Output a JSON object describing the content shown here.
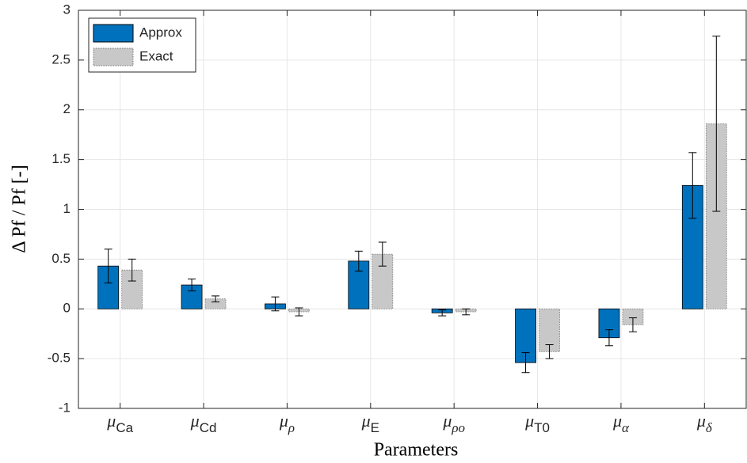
{
  "chart_data": {
    "type": "bar",
    "xlabel": "Parameters",
    "ylabel": "Δ Pf / Pf [-]",
    "categories": [
      "μCa",
      "μCd",
      "μρ",
      "μE",
      "μρo",
      "μT0",
      "μα",
      "μδ"
    ],
    "series": [
      {
        "name": "Approx",
        "color": "#0072bd",
        "values": [
          0.43,
          0.24,
          0.05,
          0.48,
          -0.04,
          -0.54,
          -0.29,
          1.24
        ],
        "errors": [
          0.17,
          0.06,
          0.07,
          0.1,
          0.03,
          0.1,
          0.08,
          0.33
        ]
      },
      {
        "name": "Exact",
        "color": "#c8c8c8",
        "values": [
          0.39,
          0.1,
          -0.03,
          0.55,
          -0.03,
          -0.43,
          -0.16,
          1.86
        ],
        "errors": [
          0.11,
          0.03,
          0.04,
          0.12,
          0.03,
          0.07,
          0.07,
          0.88
        ]
      }
    ],
    "ylim": [
      -1,
      3
    ],
    "yticks": [
      -1,
      -0.5,
      0,
      0.5,
      1,
      1.5,
      2,
      2.5,
      3
    ],
    "grid": true,
    "legend": "upper-left"
  }
}
